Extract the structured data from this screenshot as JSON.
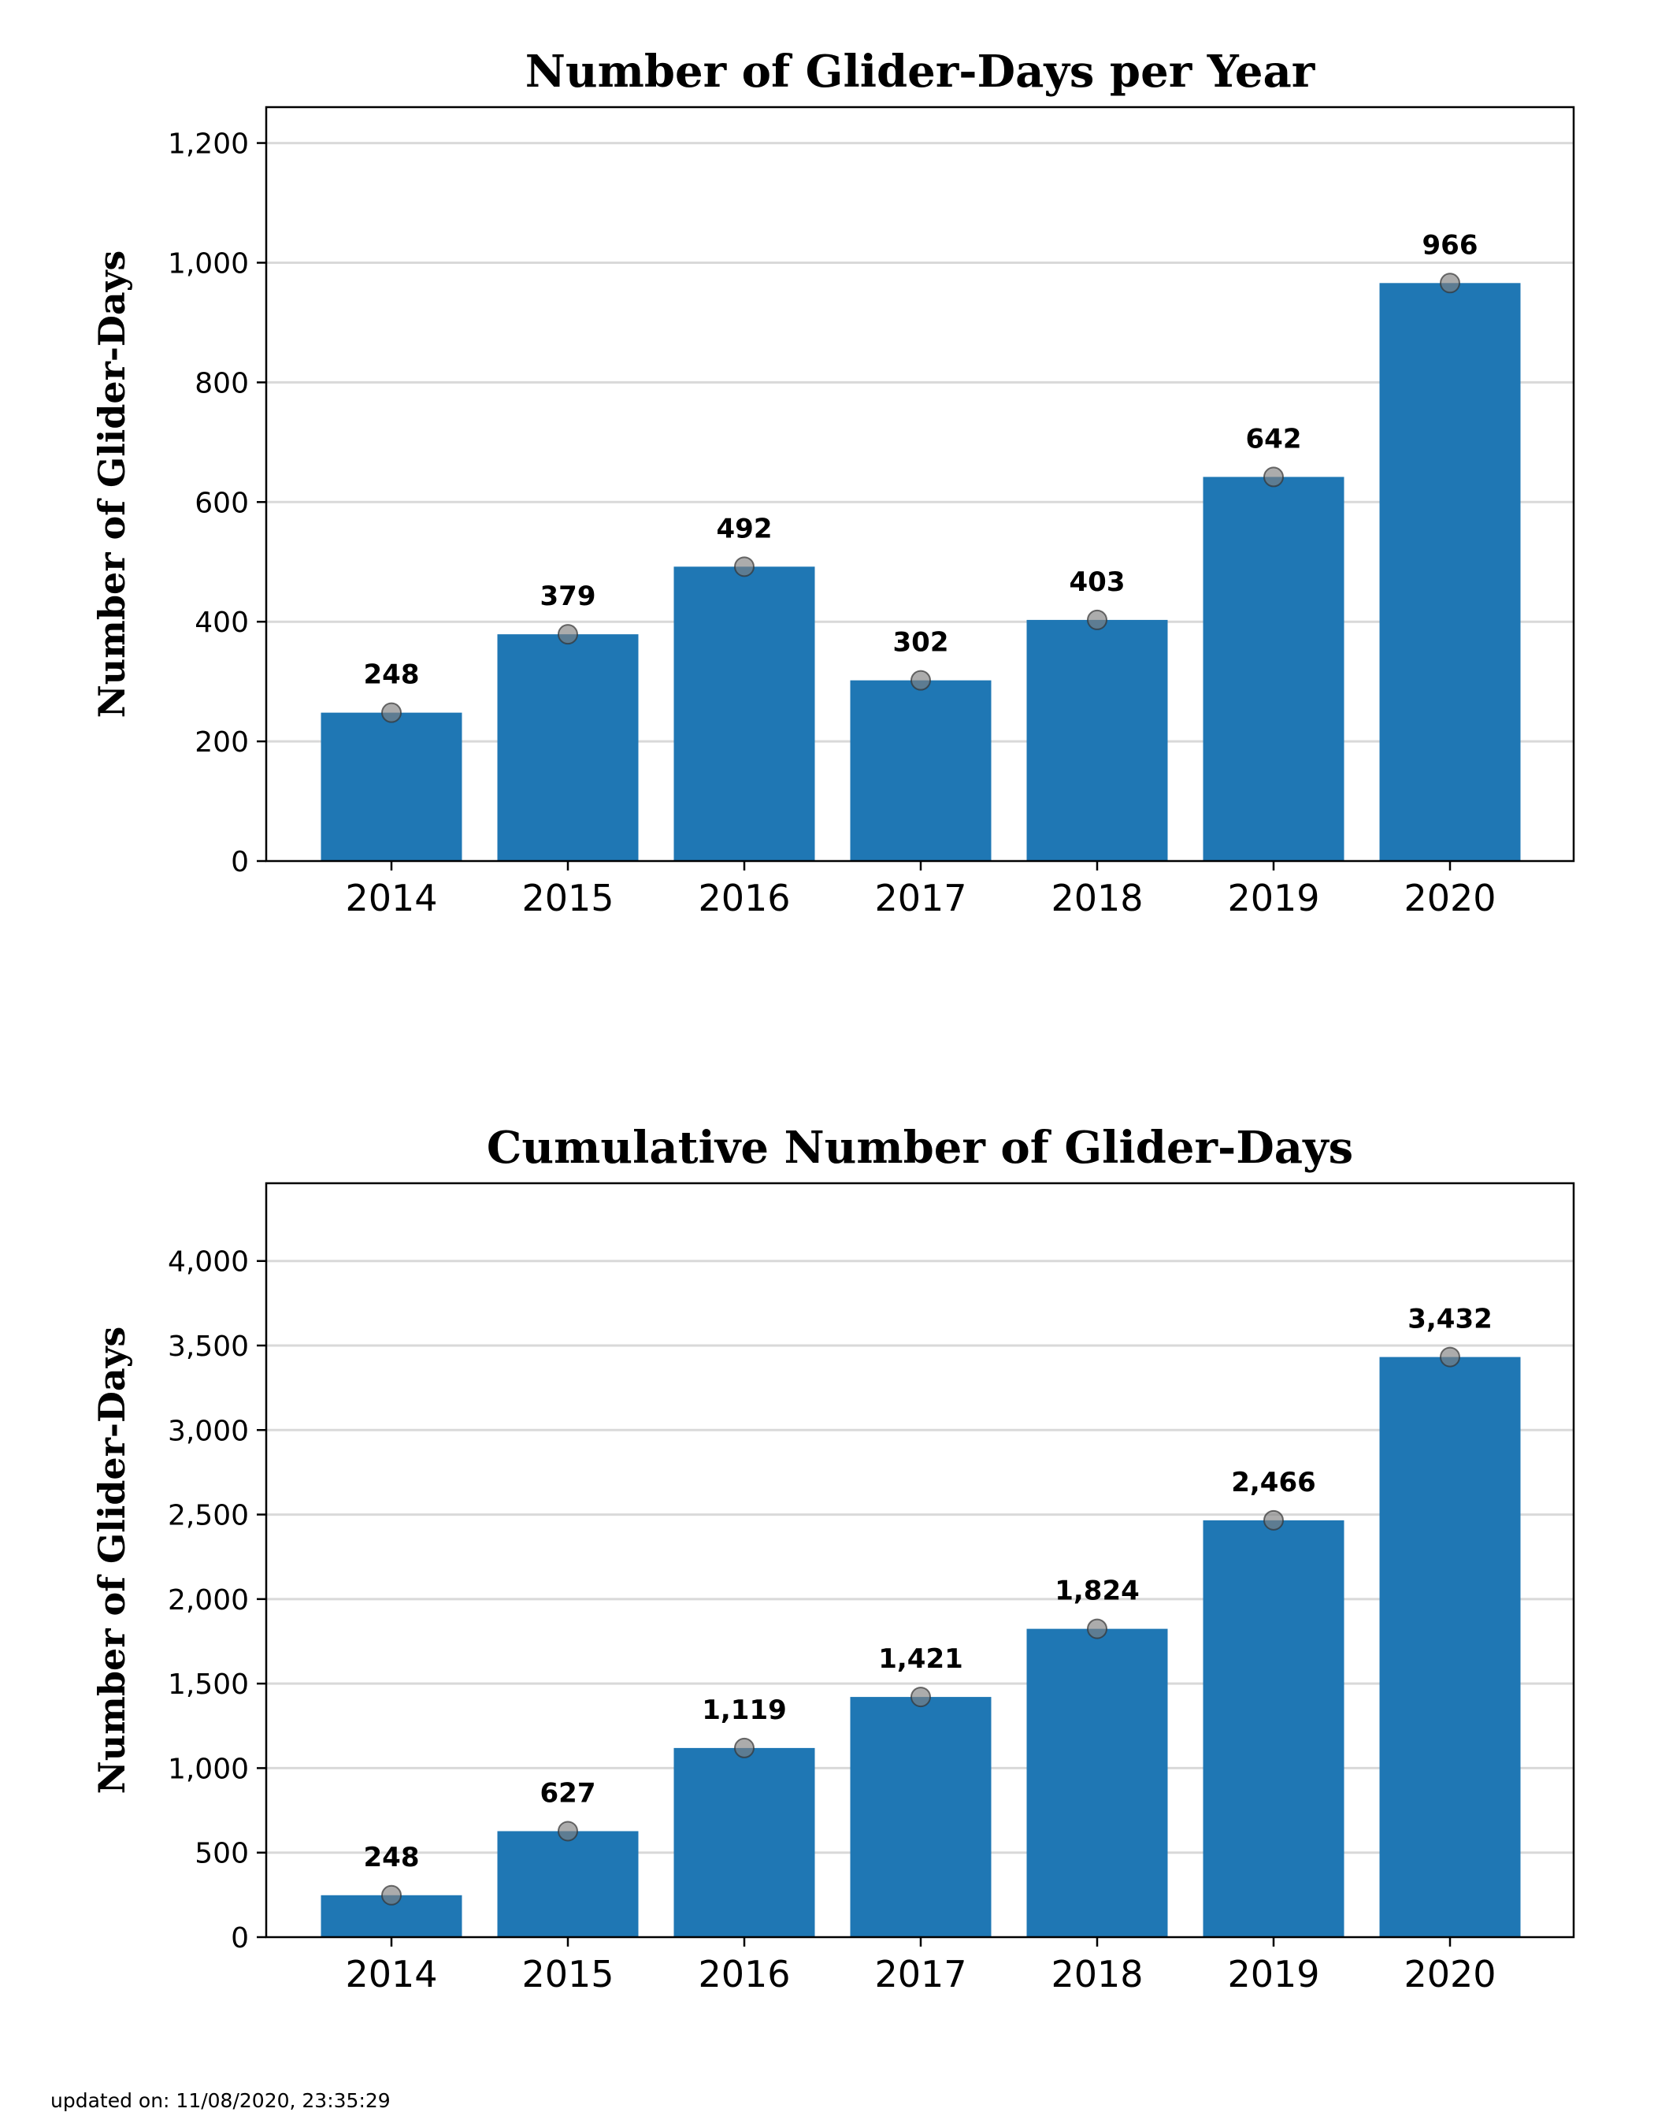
{
  "chart_data": [
    {
      "type": "bar",
      "title": "Number of Glider-Days per Year",
      "xlabel": "",
      "ylabel": "Number of Glider-Days",
      "categories": [
        "2014",
        "2015",
        "2016",
        "2017",
        "2018",
        "2019",
        "2020"
      ],
      "values": [
        248,
        379,
        492,
        302,
        403,
        642,
        966
      ],
      "value_labels": [
        "248",
        "379",
        "492",
        "302",
        "403",
        "642",
        "966"
      ],
      "ylim": [
        0,
        1260
      ],
      "yticks": [
        0,
        200,
        400,
        600,
        800,
        1000,
        1200
      ],
      "ytick_labels": [
        "0",
        "200",
        "400",
        "600",
        "800",
        "1,000",
        "1,200"
      ],
      "grid": true,
      "bar_color": "#1f77b4",
      "marker_color": "#808080"
    },
    {
      "type": "bar",
      "title": "Cumulative Number of Glider-Days",
      "xlabel": "",
      "ylabel": "Number of Glider-Days",
      "categories": [
        "2014",
        "2015",
        "2016",
        "2017",
        "2018",
        "2019",
        "2020"
      ],
      "values": [
        248,
        627,
        1119,
        1421,
        1824,
        2466,
        3432
      ],
      "value_labels": [
        "248",
        "627",
        "1,119",
        "1,421",
        "1,824",
        "2,466",
        "3,432"
      ],
      "ylim": [
        0,
        4460
      ],
      "yticks": [
        0,
        500,
        1000,
        1500,
        2000,
        2500,
        3000,
        3500,
        4000
      ],
      "ytick_labels": [
        "0",
        "500",
        "1,000",
        "1,500",
        "2,000",
        "2,500",
        "3,000",
        "3,500",
        "4,000"
      ],
      "grid": true,
      "bar_color": "#1f77b4",
      "marker_color": "#808080"
    }
  ],
  "footer": {
    "updated_text": "updated on: 11/08/2020, 23:35:29"
  }
}
